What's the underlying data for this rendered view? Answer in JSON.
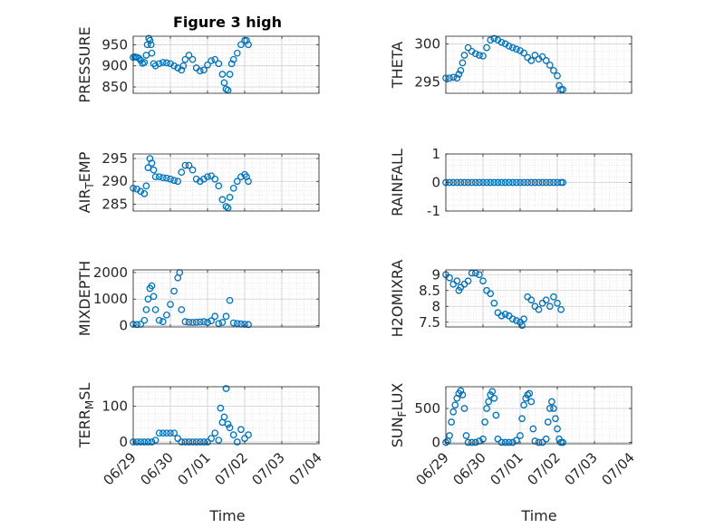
{
  "title": "Figure 3 high",
  "x_ticks": [
    "06/29",
    "06/30",
    "07/01",
    "07/02",
    "07/03",
    "07/04"
  ],
  "xlabel": "Time",
  "marker_color": "#0072BD",
  "chart_data": [
    {
      "id": "pressure",
      "type": "scatter",
      "title": "Figure 3 high",
      "ylabel": "PRESSURE",
      "ylim": [
        835,
        970
      ],
      "yticks": [
        850,
        900,
        950
      ],
      "xlim": [
        0,
        5
      ],
      "grid": true,
      "points": [
        [
          0,
          920
        ],
        [
          0.05,
          921
        ],
        [
          0.1,
          920
        ],
        [
          0.15,
          918
        ],
        [
          0.2,
          913
        ],
        [
          0.25,
          906
        ],
        [
          0.3,
          908
        ],
        [
          0.35,
          925
        ],
        [
          0.38,
          950
        ],
        [
          0.42,
          965
        ],
        [
          0.45,
          960
        ],
        [
          0.48,
          950
        ],
        [
          0.5,
          930
        ],
        [
          0.55,
          905
        ],
        [
          0.6,
          900
        ],
        [
          0.7,
          905
        ],
        [
          0.8,
          908
        ],
        [
          0.9,
          907
        ],
        [
          1.0,
          905
        ],
        [
          1.1,
          900
        ],
        [
          1.2,
          895
        ],
        [
          1.3,
          890
        ],
        [
          1.35,
          900
        ],
        [
          1.4,
          915
        ],
        [
          1.5,
          925
        ],
        [
          1.6,
          915
        ],
        [
          1.7,
          895
        ],
        [
          1.8,
          888
        ],
        [
          1.9,
          890
        ],
        [
          2.0,
          902
        ],
        [
          2.1,
          912
        ],
        [
          2.2,
          915
        ],
        [
          2.3,
          905
        ],
        [
          2.4,
          880
        ],
        [
          2.45,
          860
        ],
        [
          2.5,
          845
        ],
        [
          2.55,
          842
        ],
        [
          2.6,
          880
        ],
        [
          2.65,
          905
        ],
        [
          2.7,
          915
        ],
        [
          2.8,
          930
        ],
        [
          2.9,
          950
        ],
        [
          3.0,
          960
        ],
        [
          3.05,
          960
        ],
        [
          3.1,
          950
        ]
      ]
    },
    {
      "id": "theta",
      "type": "scatter",
      "ylabel": "THETA",
      "ylim": [
        293.5,
        301
      ],
      "yticks": [
        295,
        300
      ],
      "xlim": [
        0,
        5
      ],
      "grid": true,
      "points": [
        [
          0,
          295.5
        ],
        [
          0.1,
          295.5
        ],
        [
          0.2,
          295.6
        ],
        [
          0.3,
          295.5
        ],
        [
          0.35,
          296
        ],
        [
          0.4,
          296.5
        ],
        [
          0.45,
          297.5
        ],
        [
          0.5,
          298.5
        ],
        [
          0.6,
          299.5
        ],
        [
          0.7,
          299
        ],
        [
          0.8,
          298.7
        ],
        [
          0.9,
          298.5
        ],
        [
          1.0,
          298.4
        ],
        [
          1.1,
          299.5
        ],
        [
          1.2,
          300.5
        ],
        [
          1.3,
          300.7
        ],
        [
          1.4,
          300.5
        ],
        [
          1.5,
          300.2
        ],
        [
          1.6,
          300
        ],
        [
          1.7,
          299.7
        ],
        [
          1.8,
          299.5
        ],
        [
          1.9,
          299.3
        ],
        [
          2.0,
          299.1
        ],
        [
          2.1,
          298.8
        ],
        [
          2.2,
          298.2
        ],
        [
          2.3,
          297.8
        ],
        [
          2.4,
          298.5
        ],
        [
          2.5,
          298
        ],
        [
          2.6,
          298.3
        ],
        [
          2.7,
          297.8
        ],
        [
          2.8,
          297.2
        ],
        [
          2.9,
          296.5
        ],
        [
          3.0,
          295.8
        ],
        [
          3.05,
          294.5
        ],
        [
          3.1,
          294
        ],
        [
          3.15,
          294
        ]
      ]
    },
    {
      "id": "air_temp",
      "type": "scatter",
      "ylabel_main": "AIR",
      "ylabel_sub": "T",
      "ylabel_rest": "EMP",
      "ylim": [
        283.5,
        296
      ],
      "yticks": [
        285,
        290,
        295
      ],
      "xlim": [
        0,
        5
      ],
      "grid": true,
      "points": [
        [
          0,
          288.5
        ],
        [
          0.1,
          288.3
        ],
        [
          0.2,
          287.8
        ],
        [
          0.3,
          287.3
        ],
        [
          0.35,
          289
        ],
        [
          0.4,
          293
        ],
        [
          0.45,
          295
        ],
        [
          0.5,
          294
        ],
        [
          0.55,
          292.5
        ],
        [
          0.6,
          291
        ],
        [
          0.7,
          291
        ],
        [
          0.8,
          290.8
        ],
        [
          0.9,
          290.7
        ],
        [
          1.0,
          290.5
        ],
        [
          1.1,
          290.2
        ],
        [
          1.2,
          290
        ],
        [
          1.3,
          292
        ],
        [
          1.4,
          293.5
        ],
        [
          1.5,
          293.5
        ],
        [
          1.6,
          292.5
        ],
        [
          1.7,
          290.5
        ],
        [
          1.8,
          290
        ],
        [
          1.9,
          290.5
        ],
        [
          2.0,
          291
        ],
        [
          2.1,
          291.2
        ],
        [
          2.2,
          290.5
        ],
        [
          2.3,
          289
        ],
        [
          2.4,
          286
        ],
        [
          2.5,
          284.5
        ],
        [
          2.55,
          284.2
        ],
        [
          2.6,
          286.5
        ],
        [
          2.7,
          288.5
        ],
        [
          2.8,
          290
        ],
        [
          2.9,
          291
        ],
        [
          3.0,
          291.5
        ],
        [
          3.05,
          291
        ],
        [
          3.1,
          290
        ]
      ]
    },
    {
      "id": "rainfall",
      "type": "scatter",
      "ylabel": "RAINFALL",
      "ylim": [
        -1,
        1
      ],
      "yticks": [
        -1,
        0,
        1
      ],
      "xlim": [
        0,
        5
      ],
      "grid": true,
      "points": [
        [
          0,
          0
        ],
        [
          0.1,
          0
        ],
        [
          0.2,
          0
        ],
        [
          0.3,
          0
        ],
        [
          0.4,
          0
        ],
        [
          0.5,
          0
        ],
        [
          0.6,
          0
        ],
        [
          0.7,
          0
        ],
        [
          0.8,
          0
        ],
        [
          0.9,
          0
        ],
        [
          1.0,
          0
        ],
        [
          1.1,
          0
        ],
        [
          1.2,
          0
        ],
        [
          1.3,
          0
        ],
        [
          1.4,
          0
        ],
        [
          1.5,
          0
        ],
        [
          1.6,
          0
        ],
        [
          1.7,
          0
        ],
        [
          1.8,
          0
        ],
        [
          1.9,
          0
        ],
        [
          2.0,
          0
        ],
        [
          2.1,
          0
        ],
        [
          2.2,
          0
        ],
        [
          2.3,
          0
        ],
        [
          2.4,
          0
        ],
        [
          2.5,
          0
        ],
        [
          2.6,
          0
        ],
        [
          2.7,
          0
        ],
        [
          2.8,
          0
        ],
        [
          2.9,
          0
        ],
        [
          3.0,
          0
        ],
        [
          3.1,
          0
        ],
        [
          3.15,
          0
        ]
      ]
    },
    {
      "id": "mixdepth",
      "type": "scatter",
      "ylabel": "MIXDEPTH",
      "ylim": [
        -50,
        2100
      ],
      "yticks": [
        0,
        1000,
        2000
      ],
      "xlim": [
        0,
        5
      ],
      "grid": true,
      "points": [
        [
          0,
          50
        ],
        [
          0.1,
          40
        ],
        [
          0.2,
          50
        ],
        [
          0.3,
          200
        ],
        [
          0.35,
          600
        ],
        [
          0.4,
          1000
        ],
        [
          0.45,
          1400
        ],
        [
          0.5,
          1500
        ],
        [
          0.55,
          1100
        ],
        [
          0.6,
          600
        ],
        [
          0.7,
          200
        ],
        [
          0.8,
          150
        ],
        [
          0.9,
          400
        ],
        [
          1.0,
          800
        ],
        [
          1.1,
          1300
        ],
        [
          1.2,
          1800
        ],
        [
          1.25,
          2000
        ],
        [
          1.3,
          600
        ],
        [
          1.4,
          150
        ],
        [
          1.5,
          130
        ],
        [
          1.6,
          120
        ],
        [
          1.7,
          130
        ],
        [
          1.8,
          140
        ],
        [
          1.9,
          150
        ],
        [
          2.0,
          120
        ],
        [
          2.1,
          180
        ],
        [
          2.2,
          350
        ],
        [
          2.3,
          80
        ],
        [
          2.4,
          120
        ],
        [
          2.5,
          350
        ],
        [
          2.6,
          950
        ],
        [
          2.7,
          100
        ],
        [
          2.8,
          80
        ],
        [
          2.9,
          60
        ],
        [
          3.0,
          50
        ],
        [
          3.1,
          40
        ]
      ]
    },
    {
      "id": "h2omixra",
      "type": "scatter",
      "ylabel": "H2OMIXRA",
      "ylim": [
        7.35,
        9.15
      ],
      "yticks": [
        7.5,
        8,
        8.5,
        9
      ],
      "xlim": [
        0,
        5
      ],
      "grid": true,
      "points": [
        [
          0,
          9
        ],
        [
          0.1,
          8.9
        ],
        [
          0.2,
          8.7
        ],
        [
          0.3,
          8.8
        ],
        [
          0.35,
          8.5
        ],
        [
          0.4,
          8.6
        ],
        [
          0.5,
          8.7
        ],
        [
          0.6,
          8.8
        ],
        [
          0.7,
          9.05
        ],
        [
          0.8,
          9.05
        ],
        [
          0.9,
          9
        ],
        [
          1.0,
          8.8
        ],
        [
          1.1,
          8.5
        ],
        [
          1.2,
          8.4
        ],
        [
          1.3,
          8.1
        ],
        [
          1.4,
          7.8
        ],
        [
          1.5,
          7.7
        ],
        [
          1.6,
          7.75
        ],
        [
          1.7,
          7.7
        ],
        [
          1.8,
          7.6
        ],
        [
          1.9,
          7.55
        ],
        [
          2.0,
          7.5
        ],
        [
          2.05,
          7.4
        ],
        [
          2.1,
          7.6
        ],
        [
          2.2,
          8.3
        ],
        [
          2.3,
          8.2
        ],
        [
          2.4,
          8
        ],
        [
          2.5,
          7.9
        ],
        [
          2.6,
          8.1
        ],
        [
          2.7,
          8.2
        ],
        [
          2.8,
          8
        ],
        [
          2.9,
          8.3
        ],
        [
          3.0,
          8.1
        ],
        [
          3.1,
          7.9
        ]
      ]
    },
    {
      "id": "terr_msl",
      "type": "scatter",
      "ylabel_main": "TERR",
      "ylabel_sub": "M",
      "ylabel_rest": "SL",
      "ylim": [
        -5,
        155
      ],
      "yticks": [
        0,
        100
      ],
      "xlim": [
        0,
        5
      ],
      "grid": true,
      "points": [
        [
          0,
          0
        ],
        [
          0.1,
          0
        ],
        [
          0.2,
          0
        ],
        [
          0.3,
          0
        ],
        [
          0.4,
          0
        ],
        [
          0.5,
          0
        ],
        [
          0.6,
          5
        ],
        [
          0.7,
          25
        ],
        [
          0.8,
          25
        ],
        [
          0.9,
          25
        ],
        [
          1.0,
          25
        ],
        [
          1.1,
          25
        ],
        [
          1.2,
          10
        ],
        [
          1.3,
          0
        ],
        [
          1.4,
          0
        ],
        [
          1.5,
          0
        ],
        [
          1.6,
          0
        ],
        [
          1.7,
          0
        ],
        [
          1.8,
          0
        ],
        [
          1.9,
          0
        ],
        [
          2.0,
          0
        ],
        [
          2.1,
          10
        ],
        [
          2.2,
          25
        ],
        [
          2.3,
          5
        ],
        [
          2.35,
          95
        ],
        [
          2.4,
          55
        ],
        [
          2.45,
          70
        ],
        [
          2.5,
          150
        ],
        [
          2.55,
          50
        ],
        [
          2.6,
          40
        ],
        [
          2.7,
          20
        ],
        [
          2.8,
          0
        ],
        [
          2.9,
          35
        ],
        [
          3.0,
          10
        ],
        [
          3.1,
          20
        ]
      ]
    },
    {
      "id": "sun_flux",
      "type": "scatter",
      "ylabel_main": "SUN",
      "ylabel_sub": "F",
      "ylabel_rest": "LUX",
      "ylim": [
        -20,
        820
      ],
      "yticks": [
        0,
        500
      ],
      "xlim": [
        0,
        5
      ],
      "grid": true,
      "points": [
        [
          0,
          0
        ],
        [
          0.05,
          20
        ],
        [
          0.1,
          100
        ],
        [
          0.15,
          300
        ],
        [
          0.2,
          450
        ],
        [
          0.25,
          550
        ],
        [
          0.3,
          650
        ],
        [
          0.35,
          720
        ],
        [
          0.4,
          760
        ],
        [
          0.45,
          700
        ],
        [
          0.5,
          500
        ],
        [
          0.55,
          100
        ],
        [
          0.6,
          0
        ],
        [
          0.7,
          0
        ],
        [
          0.8,
          0
        ],
        [
          0.9,
          20
        ],
        [
          1.0,
          50
        ],
        [
          1.05,
          300
        ],
        [
          1.1,
          500
        ],
        [
          1.15,
          600
        ],
        [
          1.2,
          700
        ],
        [
          1.25,
          750
        ],
        [
          1.3,
          650
        ],
        [
          1.35,
          400
        ],
        [
          1.4,
          50
        ],
        [
          1.5,
          0
        ],
        [
          1.6,
          0
        ],
        [
          1.7,
          0
        ],
        [
          1.8,
          0
        ],
        [
          1.9,
          30
        ],
        [
          2.0,
          100
        ],
        [
          2.05,
          350
        ],
        [
          2.1,
          550
        ],
        [
          2.15,
          650
        ],
        [
          2.2,
          700
        ],
        [
          2.25,
          720
        ],
        [
          2.3,
          600
        ],
        [
          2.35,
          200
        ],
        [
          2.4,
          20
        ],
        [
          2.5,
          0
        ],
        [
          2.6,
          0
        ],
        [
          2.7,
          50
        ],
        [
          2.75,
          300
        ],
        [
          2.8,
          500
        ],
        [
          2.85,
          600
        ],
        [
          2.9,
          500
        ],
        [
          2.95,
          350
        ],
        [
          3.0,
          200
        ],
        [
          3.05,
          50
        ],
        [
          3.1,
          0
        ],
        [
          3.15,
          0
        ]
      ]
    }
  ]
}
